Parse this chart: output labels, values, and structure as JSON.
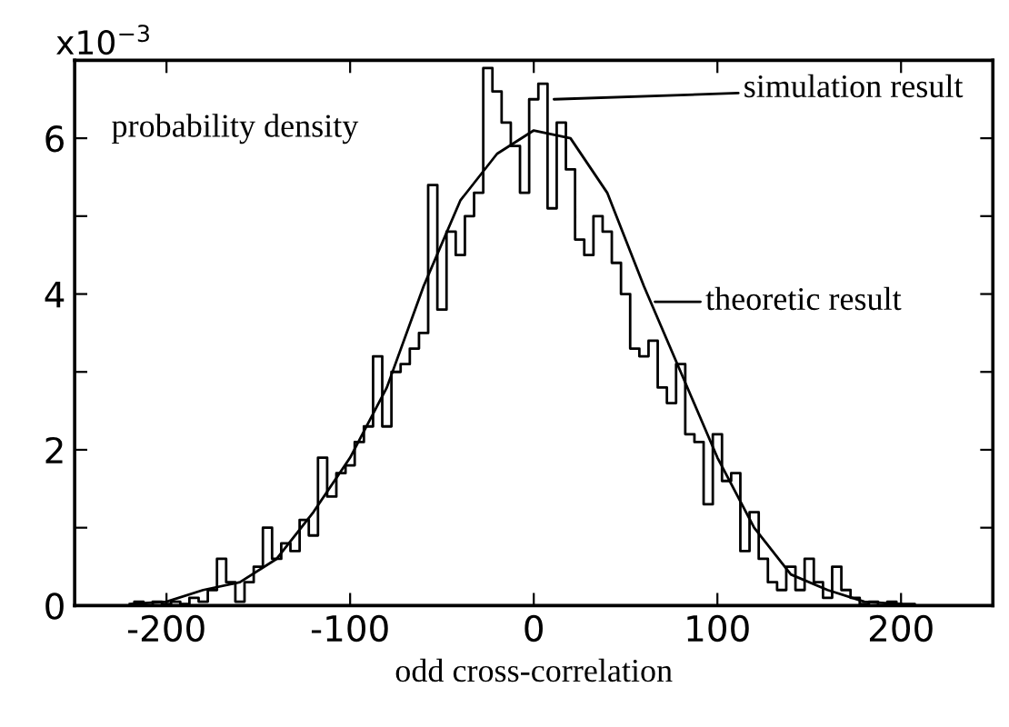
{
  "chart_data": {
    "type": "line",
    "xlabel": "odd cross-correlation",
    "xlim": [
      -250,
      250
    ],
    "xticks": [
      -200,
      -100,
      0,
      100,
      200
    ],
    "ylim": [
      0,
      7
    ],
    "yticks": [
      0,
      {
        "value": 1,
        "label": null
      },
      2,
      {
        "value": 3,
        "label": null
      },
      4,
      {
        "value": 5,
        "label": null
      },
      6
    ],
    "grid": false,
    "marker": "none",
    "line_style": "solid",
    "annotations": [
      "x10$^{−3}$",
      "probability density",
      {
        "text": "simulation result",
        "x": 11,
        "y": 6.5
      },
      {
        "text": "theoretic result",
        "x": 66,
        "y": 3.9
      }
    ],
    "series": [
      {
        "color": "#000000",
        "type": "step",
        "x": [
          -220,
          -215,
          -210,
          -205,
          -200,
          -195,
          -190,
          -185,
          -180,
          -175,
          -170,
          -165,
          -160,
          -155,
          -150,
          -145,
          -140,
          -135,
          -130,
          -125,
          -120,
          -115,
          -110,
          -105,
          -100,
          -95,
          -90,
          -85,
          -80,
          -75,
          -70,
          -65,
          -60,
          -55,
          -50,
          -45,
          -40,
          -35,
          -30,
          -25,
          -20,
          -15,
          -10,
          -5,
          0,
          5,
          10,
          15,
          20,
          25,
          30,
          35,
          40,
          45,
          50,
          55,
          60,
          65,
          70,
          75,
          80,
          85,
          90,
          95,
          100,
          105,
          110,
          115,
          120,
          125,
          130,
          135,
          140,
          145,
          150,
          155,
          160,
          165,
          170,
          175,
          180,
          185,
          190,
          195,
          200,
          205,
          210
        ],
        "values": [
          0,
          0.05,
          0,
          0.05,
          0.02,
          0.05,
          0.02,
          0.1,
          0.05,
          0.2,
          0.6,
          0.3,
          0.05,
          0.3,
          0.5,
          1.0,
          0.6,
          0.8,
          0.7,
          1.1,
          0.9,
          1.9,
          1.4,
          1.7,
          1.8,
          2.1,
          2.3,
          3.2,
          2.3,
          3.0,
          3.1,
          3.3,
          3.5,
          5.4,
          3.8,
          4.8,
          4.5,
          5.0,
          5.3,
          6.9,
          6.6,
          6.2,
          5.9,
          5.3,
          6.5,
          6.7,
          5.1,
          6.2,
          5.6,
          4.7,
          4.5,
          5.0,
          4.8,
          4.4,
          4.0,
          3.3,
          3.2,
          3.4,
          2.8,
          2.6,
          3.1,
          2.2,
          2.1,
          1.3,
          2.2,
          1.6,
          1.7,
          0.7,
          1.2,
          0.6,
          0.3,
          0.2,
          0.5,
          0.2,
          0.6,
          0.3,
          0.1,
          0.5,
          0.2,
          0.1,
          0.02,
          0.05,
          0,
          0.05,
          0.02,
          0.02,
          0
        ]
      },
      {
        "color": "#000000",
        "x": [
          -220,
          -200,
          -180,
          -160,
          -140,
          -120,
          -100,
          -80,
          -60,
          -40,
          -20,
          0,
          20,
          40,
          60,
          80,
          100,
          120,
          140,
          160,
          180,
          200
        ],
        "values": [
          0.02,
          0.05,
          0.2,
          0.3,
          0.6,
          1.2,
          1.9,
          2.8,
          4.1,
          5.2,
          5.8,
          6.1,
          6.0,
          5.3,
          4.1,
          3.0,
          1.9,
          1.0,
          0.4,
          0.2,
          0.05,
          0.02
        ]
      }
    ]
  }
}
